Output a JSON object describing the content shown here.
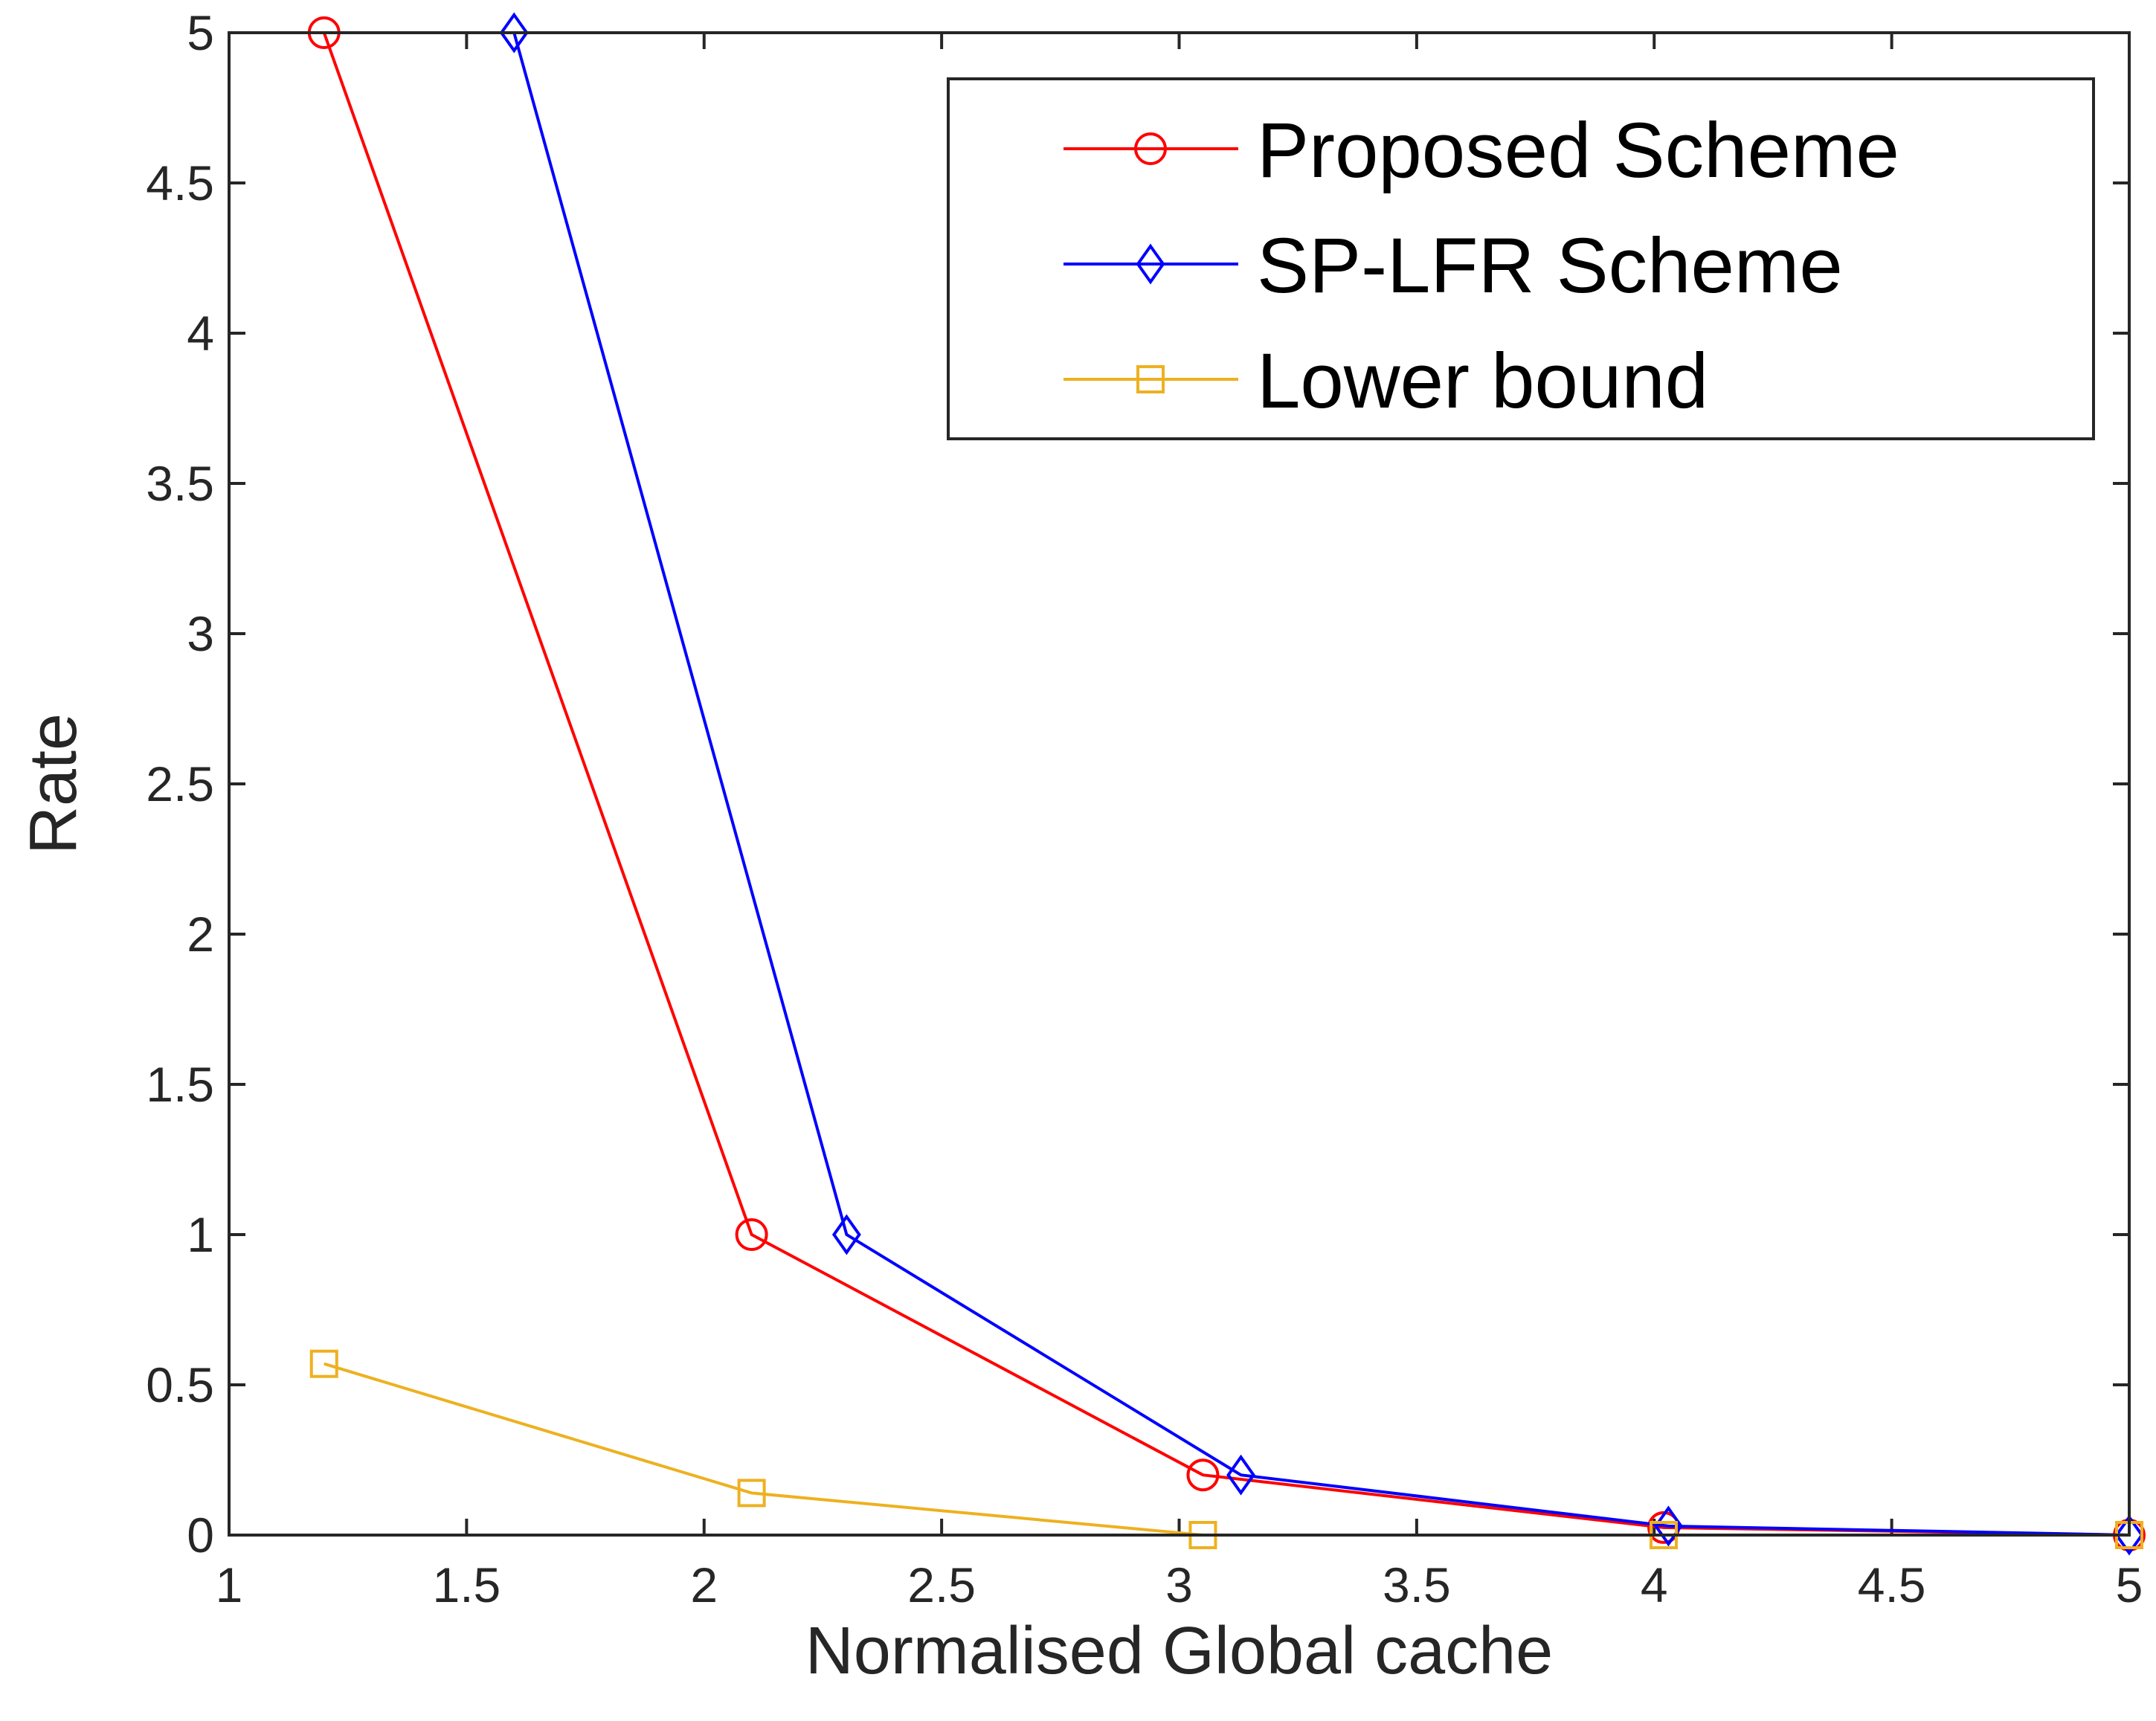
{
  "chart_data": {
    "type": "line",
    "xlabel": "Normalised Global cache",
    "ylabel": "Rate",
    "xlim": [
      1,
      5
    ],
    "ylim": [
      0,
      5
    ],
    "xticks": [
      "1",
      "1.5",
      "2",
      "2.5",
      "3",
      "3.5",
      "4",
      "4.5",
      "5"
    ],
    "yticks": [
      "0",
      "0.5",
      "1",
      "1.5",
      "2",
      "2.5",
      "3",
      "3.5",
      "4",
      "4.5",
      "5"
    ],
    "grid": false,
    "legend_position": "top-right",
    "series": [
      {
        "name": "Proposed Scheme",
        "color": "#ff0000",
        "marker": "circle",
        "x": [
          1.2,
          2.1,
          3.05,
          4.02,
          5.0
        ],
        "y": [
          5.0,
          1.0,
          0.2,
          0.025,
          0.0
        ]
      },
      {
        "name": "SP-LFR Scheme",
        "color": "#0000ff",
        "marker": "diamond",
        "x": [
          1.6,
          2.3,
          3.13,
          4.03,
          5.0
        ],
        "y": [
          5.0,
          1.0,
          0.2,
          0.03,
          0.0
        ]
      },
      {
        "name": "Lower bound",
        "color": "#edb120",
        "marker": "square",
        "x": [
          1.2,
          2.1,
          3.05,
          4.02,
          5.0
        ],
        "y": [
          0.57,
          0.14,
          0.0,
          0.0,
          0.0
        ]
      }
    ]
  }
}
